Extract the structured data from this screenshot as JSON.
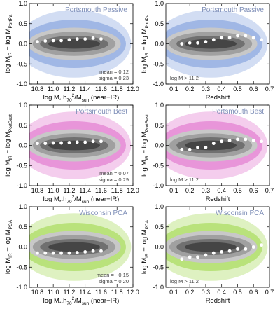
{
  "chart_data": [
    {
      "type": "scatter",
      "title": "Portsmouth Passive",
      "color": "#7f9fdc",
      "annotations": [
        "mean = 0.12",
        "sigma = 0.23"
      ],
      "annotation_corner": "lower right",
      "x": [
        10.8,
        10.9,
        11.0,
        11.1,
        11.2,
        11.3,
        11.4,
        11.5,
        11.6
      ],
      "values": [
        0.05,
        0.07,
        0.08,
        0.08,
        0.1,
        0.12,
        0.12,
        0.14,
        0.12
      ],
      "xlim": [
        10.7,
        12.0
      ],
      "xticks": [
        10.8,
        {
          "value": 11.0,
          "label": "11.0"
        },
        11.2,
        11.4,
        11.6,
        11.8,
        {
          "value": 12.0,
          "label": "12.0"
        }
      ],
      "ylim": [
        -1,
        1
      ],
      "yticks": [
        {
          "value": -1,
          "label": "-1.0"
        },
        -0.5,
        {
          "value": 0,
          "label": "0.0"
        },
        0.5,
        {
          "value": 1,
          "label": "1.0"
        }
      ],
      "ylabel": [
        {
          "text": "log M"
        },
        {
          "text": "IR",
          "pos": "sub"
        },
        {
          "text": " − log M"
        },
        {
          "text": "PortPa",
          "pos": "sub"
        }
      ],
      "xlabel": [
        {
          "text": "log M"
        },
        {
          "text": "*",
          "pos": "sub"
        },
        {
          "text": ".h"
        },
        {
          "text": "70",
          "pos": "sub"
        },
        {
          "text": "2",
          "pos": "sup"
        },
        {
          "text": "/M"
        },
        {
          "text": "sun",
          "pos": "sub"
        },
        {
          "text": " (near−IR)"
        }
      ]
    },
    {
      "type": "scatter",
      "title": "Portsmouth Passive",
      "color": "#7f9fdc",
      "annotations": [
        "log M > 11.2"
      ],
      "annotation_corner": "lower left",
      "x": [
        0.15,
        0.2,
        0.25,
        0.3,
        0.35,
        0.4,
        0.45,
        0.5,
        0.55,
        0.6,
        0.65
      ],
      "values": [
        0.0,
        0.02,
        0.02,
        0.05,
        0.1,
        0.15,
        0.15,
        0.2,
        0.2,
        0.15,
        0.1
      ],
      "xlim": [
        0.05,
        0.7
      ],
      "xticks": [
        0.1,
        0.2,
        0.3,
        0.4,
        0.5,
        0.6,
        0.7
      ],
      "ylim": [
        -1,
        1
      ],
      "yticks": [
        {
          "value": -1,
          "label": "-1.0"
        },
        -0.5,
        {
          "value": 0,
          "label": "0.0"
        },
        0.5,
        {
          "value": 1,
          "label": "1.0"
        }
      ],
      "ylabel": [
        {
          "text": "log M"
        },
        {
          "text": "IR",
          "pos": "sub"
        },
        {
          "text": " − log M"
        },
        {
          "text": "PortPa",
          "pos": "sub"
        }
      ],
      "xlabel": [
        {
          "text": "Redshift"
        }
      ]
    },
    {
      "type": "scatter",
      "title": "Portsmouth Best",
      "color": "#e070cc",
      "annotations": [
        "mean = 0.07",
        "sigma = 0.29"
      ],
      "annotation_corner": "lower right",
      "x": [
        10.8,
        10.9,
        11.0,
        11.1,
        11.2,
        11.3,
        11.4,
        11.5,
        11.6
      ],
      "values": [
        0.05,
        0.05,
        0.06,
        0.06,
        0.07,
        0.08,
        0.08,
        0.1,
        0.1
      ],
      "xlim": [
        10.7,
        12.0
      ],
      "xticks": [
        10.8,
        {
          "value": 11.0,
          "label": "11.0"
        },
        11.2,
        11.4,
        11.6,
        11.8,
        {
          "value": 12.0,
          "label": "12.0"
        }
      ],
      "ylim": [
        -1,
        1
      ],
      "yticks": [
        {
          "value": -1,
          "label": "-1.0"
        },
        -0.5,
        {
          "value": 0,
          "label": "0.0"
        },
        0.5,
        {
          "value": 1,
          "label": "1.0"
        }
      ],
      "ylabel": [
        {
          "text": "log M"
        },
        {
          "text": "IR",
          "pos": "sub"
        },
        {
          "text": " − log M"
        },
        {
          "text": "PortBest",
          "pos": "sub"
        }
      ],
      "xlabel": [
        {
          "text": "log M"
        },
        {
          "text": "*",
          "pos": "sub"
        },
        {
          "text": ".h"
        },
        {
          "text": "70",
          "pos": "sub"
        },
        {
          "text": "2",
          "pos": "sup"
        },
        {
          "text": "/M"
        },
        {
          "text": "sun",
          "pos": "sub"
        },
        {
          "text": " (near−IR)"
        }
      ]
    },
    {
      "type": "scatter",
      "title": "Portsmouth Best",
      "color": "#e070cc",
      "annotations": [
        "log M > 11.2"
      ],
      "annotation_corner": "lower left",
      "x": [
        0.15,
        0.2,
        0.25,
        0.3,
        0.35,
        0.4,
        0.45,
        0.5,
        0.55,
        0.6,
        0.65
      ],
      "values": [
        -0.1,
        -0.1,
        -0.05,
        -0.05,
        0.05,
        0.1,
        0.12,
        0.15,
        0.15,
        0.12,
        0.1
      ],
      "xlim": [
        0.05,
        0.7
      ],
      "xticks": [
        0.1,
        0.2,
        0.3,
        0.4,
        0.5,
        0.6,
        0.7
      ],
      "ylim": [
        -1,
        1
      ],
      "yticks": [
        {
          "value": -1,
          "label": "-1.0"
        },
        -0.5,
        {
          "value": 0,
          "label": "0.0"
        },
        0.5,
        {
          "value": 1,
          "label": "1.0"
        }
      ],
      "ylabel": [
        {
          "text": "log M"
        },
        {
          "text": "IR",
          "pos": "sub"
        },
        {
          "text": " − log M"
        },
        {
          "text": "PortBest",
          "pos": "sub"
        }
      ],
      "xlabel": [
        {
          "text": "Redshift"
        }
      ]
    },
    {
      "type": "scatter",
      "title": "Wisconsin PCA",
      "color": "#a0d84c",
      "annotations": [
        "mean = −0.15",
        "sigma = 0.20"
      ],
      "annotation_corner": "lower right",
      "x": [
        10.8,
        10.9,
        11.0,
        11.1,
        11.2,
        11.3,
        11.4,
        11.5,
        11.6
      ],
      "values": [
        -0.15,
        -0.15,
        -0.15,
        -0.15,
        -0.15,
        -0.14,
        -0.12,
        -0.1,
        -0.1
      ],
      "xlim": [
        10.7,
        12.0
      ],
      "xticks": [
        10.8,
        {
          "value": 11.0,
          "label": "11.0"
        },
        11.2,
        11.4,
        11.6,
        11.8,
        {
          "value": 12.0,
          "label": "12.0"
        }
      ],
      "ylim": [
        -1,
        1
      ],
      "yticks": [
        {
          "value": -1,
          "label": "-1.0"
        },
        -0.5,
        {
          "value": 0,
          "label": "0.0"
        },
        0.5,
        {
          "value": 1,
          "label": "1.0"
        }
      ],
      "ylabel": [
        {
          "text": "log M"
        },
        {
          "text": "IR",
          "pos": "sub"
        },
        {
          "text": " − log M"
        },
        {
          "text": "PCA",
          "pos": "sub"
        }
      ],
      "xlabel": [
        {
          "text": "log M"
        },
        {
          "text": "*",
          "pos": "sub"
        },
        {
          "text": ".h"
        },
        {
          "text": "70",
          "pos": "sub"
        },
        {
          "text": "2",
          "pos": "sup"
        },
        {
          "text": "/M"
        },
        {
          "text": "sun",
          "pos": "sub"
        },
        {
          "text": " (near−IR)"
        }
      ]
    },
    {
      "type": "scatter",
      "title": "Wisconsin PCA",
      "color": "#a0d84c",
      "annotations": [
        "log M > 11.2"
      ],
      "annotation_corner": "lower left",
      "x": [
        0.15,
        0.2,
        0.25,
        0.3,
        0.35,
        0.4,
        0.45,
        0.5,
        0.55,
        0.6,
        0.65
      ],
      "values": [
        -0.3,
        -0.25,
        -0.25,
        -0.2,
        -0.15,
        -0.12,
        -0.1,
        -0.05,
        -0.05,
        0,
        0.05
      ],
      "xlim": [
        0.05,
        0.7
      ],
      "xticks": [
        0.1,
        0.2,
        0.3,
        0.4,
        0.5,
        0.6,
        0.7
      ],
      "ylim": [
        -1,
        1
      ],
      "yticks": [
        {
          "value": -1,
          "label": "-1.0"
        },
        -0.5,
        {
          "value": 0,
          "label": "0.0"
        },
        0.5,
        {
          "value": 1,
          "label": "1.0"
        }
      ],
      "ylabel": [
        {
          "text": "log M"
        },
        {
          "text": "IR",
          "pos": "sub"
        },
        {
          "text": " − log M"
        },
        {
          "text": "PCA",
          "pos": "sub"
        }
      ],
      "xlabel": [
        {
          "text": "Redshift"
        }
      ]
    }
  ]
}
